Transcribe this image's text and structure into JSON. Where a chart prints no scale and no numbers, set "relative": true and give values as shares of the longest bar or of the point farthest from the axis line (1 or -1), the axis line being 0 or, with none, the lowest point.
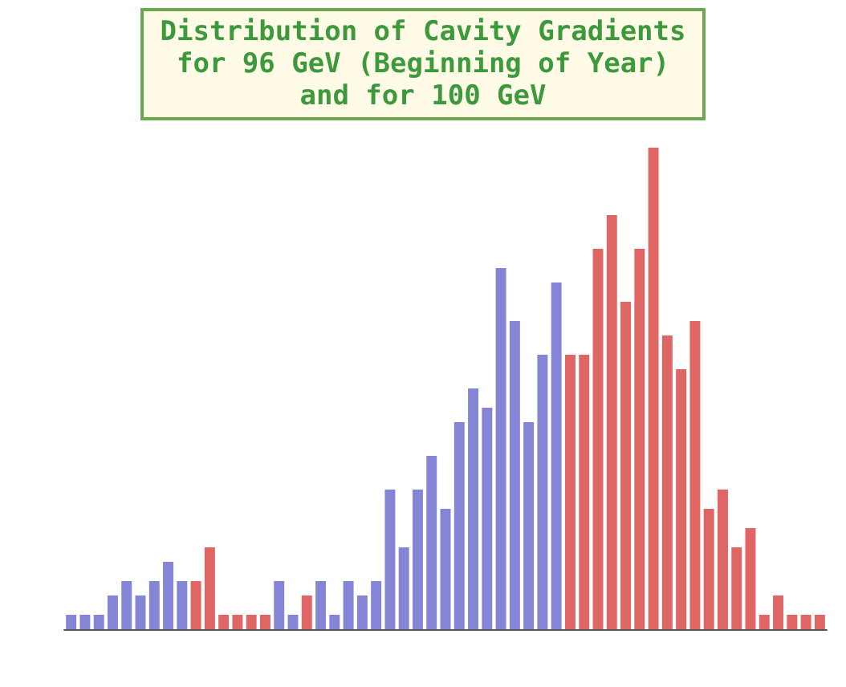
{
  "chart_data": {
    "type": "bar",
    "title": "Distribution of Cavity Gradients for 96 GeV (Beginning of Year) and for 100 GeV",
    "relative": true,
    "categories": [
      null,
      null,
      null,
      null,
      null,
      null,
      null,
      null,
      null,
      null,
      null,
      null,
      null,
      null,
      null,
      null,
      null,
      null,
      null,
      null,
      null,
      null,
      null,
      null,
      null,
      null,
      null,
      null,
      null,
      null,
      null,
      null,
      null,
      null,
      null,
      null,
      null,
      null,
      null,
      null,
      null,
      null,
      null,
      null,
      null,
      null,
      null,
      null,
      null,
      null,
      null,
      null,
      null,
      null,
      null
    ],
    "values": [
      0.03,
      0.03,
      0.03,
      0.07,
      0.1,
      0.07,
      0.1,
      0.14,
      0.1,
      0.1,
      0.17,
      0.03,
      0.03,
      0.03,
      0.03,
      0.1,
      0.03,
      0.07,
      0.1,
      0.03,
      0.1,
      0.07,
      0.1,
      0.29,
      0.17,
      0.29,
      0.36,
      0.25,
      0.43,
      0.5,
      0.46,
      0.75,
      0.64,
      0.43,
      0.57,
      0.72,
      0.57,
      0.57,
      0.79,
      0.86,
      0.68,
      0.79,
      1.0,
      0.61,
      0.54,
      0.64,
      0.25,
      0.29,
      0.17,
      0.21,
      0.03,
      0.07,
      0.03,
      0.03,
      0.03
    ],
    "colors": [
      "#8585d6",
      "#8585d6",
      "#8585d6",
      "#8585d6",
      "#8585d6",
      "#8585d6",
      "#8585d6",
      "#8585d6",
      "#8585d6",
      "#e06666",
      "#e06666",
      "#e06666",
      "#e06666",
      "#e06666",
      "#e06666",
      "#8585d6",
      "#8585d6",
      "#e06666",
      "#8585d6",
      "#8585d6",
      "#8585d6",
      "#8585d6",
      "#8585d6",
      "#8585d6",
      "#8585d6",
      "#8585d6",
      "#8585d6",
      "#8585d6",
      "#8585d6",
      "#8585d6",
      "#8585d6",
      "#8585d6",
      "#8585d6",
      "#8585d6",
      "#8585d6",
      "#8585d6",
      "#e06666",
      "#e06666",
      "#e06666",
      "#e06666",
      "#e06666",
      "#e06666",
      "#e06666",
      "#e06666",
      "#e06666",
      "#e06666",
      "#e06666",
      "#e06666",
      "#e06666",
      "#e06666",
      "#e06666",
      "#e06666",
      "#e06666",
      "#e06666",
      "#e06666"
    ]
  }
}
